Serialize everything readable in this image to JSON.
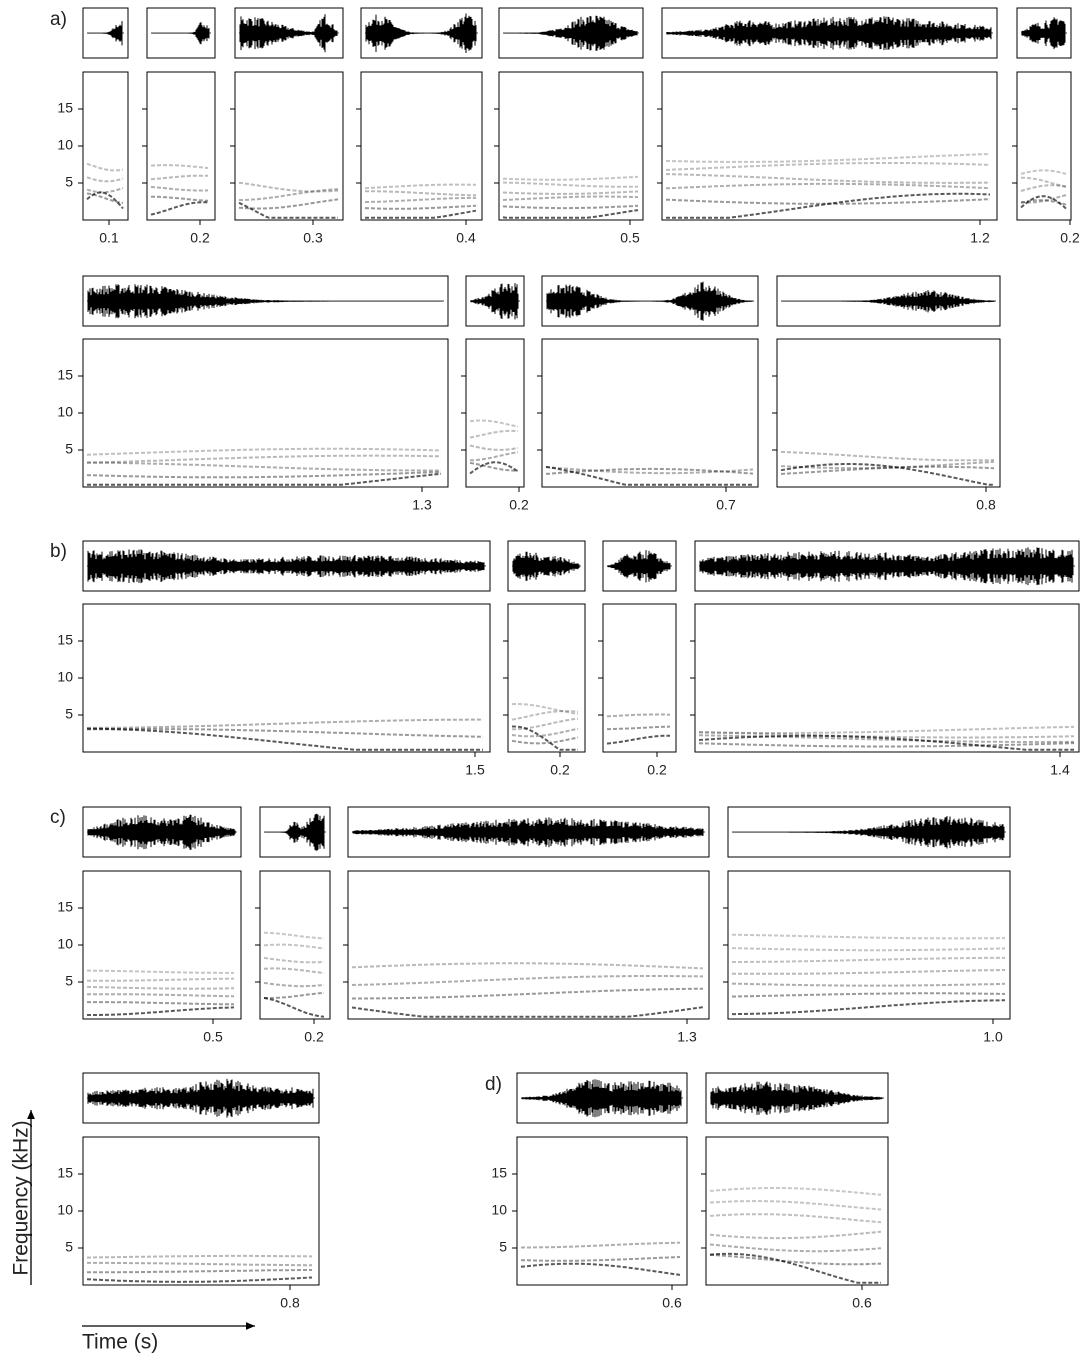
{
  "panels": [
    {
      "label": "a)",
      "units": [
        {
          "duration": "0.1"
        },
        {
          "duration": "0.2"
        },
        {
          "duration": "0.3"
        },
        {
          "duration": "0.4"
        },
        {
          "duration": "0.5"
        },
        {
          "duration": "1.2"
        },
        {
          "duration": "0.2"
        },
        {
          "duration": "1.3"
        },
        {
          "duration": "0.2"
        },
        {
          "duration": "0.7"
        },
        {
          "duration": "0.8"
        }
      ]
    },
    {
      "label": "b)",
      "units": [
        {
          "duration": "1.5"
        },
        {
          "duration": "0.2"
        },
        {
          "duration": "0.2"
        },
        {
          "duration": "1.4"
        }
      ]
    },
    {
      "label": "c)",
      "units": [
        {
          "duration": "0.5"
        },
        {
          "duration": "0.2"
        },
        {
          "duration": "1.3"
        },
        {
          "duration": "1.0"
        },
        {
          "duration": "0.8"
        }
      ]
    },
    {
      "label": "d)",
      "units": [
        {
          "duration": "0.6"
        },
        {
          "duration": "0.6"
        }
      ]
    }
  ],
  "frequency_ticks": [
    15,
    10,
    5
  ],
  "y_axis_label": "Frequency (kHz)",
  "x_axis_label": "Time (s)"
}
